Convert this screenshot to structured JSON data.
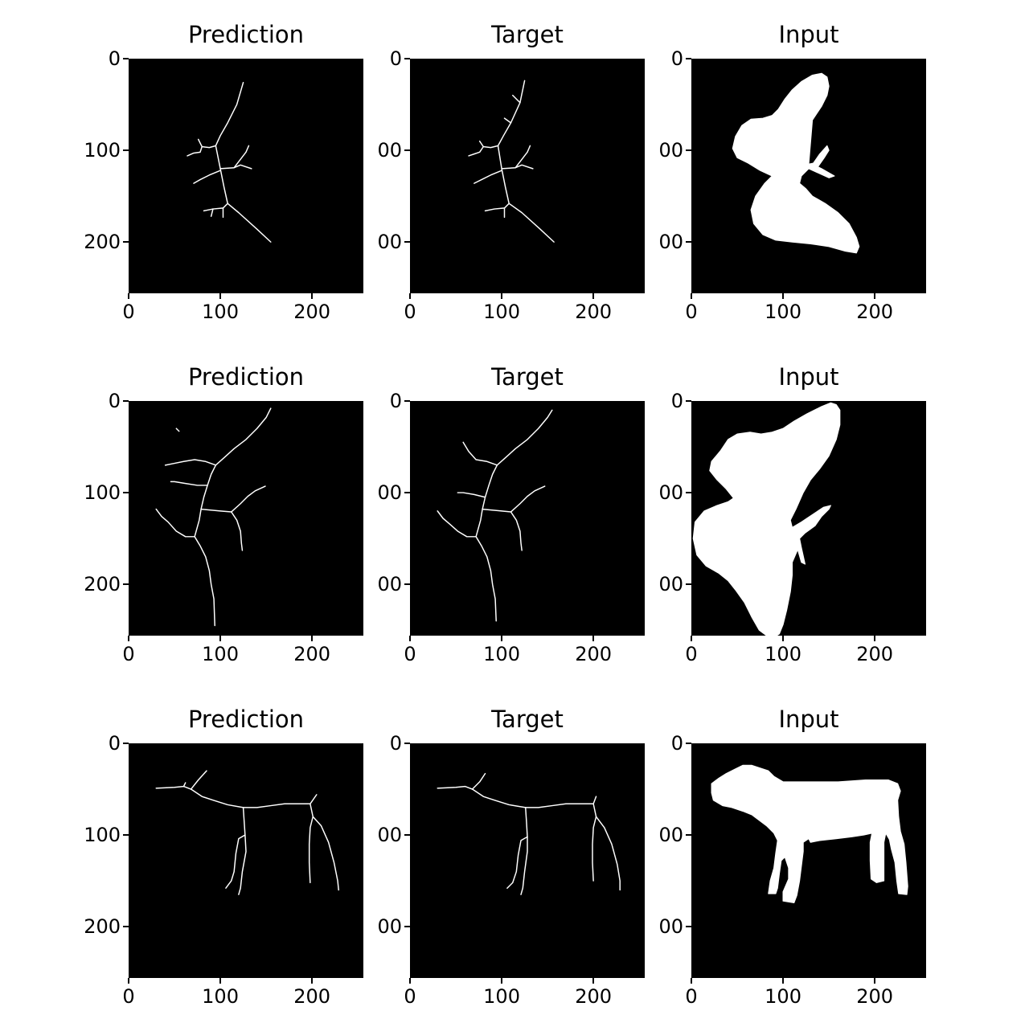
{
  "figure": {
    "rows": [
      {
        "panels": [
          {
            "title": "Prediction",
            "kind": "skeleton",
            "shape": "butterfly1-pred"
          },
          {
            "title": "Target",
            "kind": "skeleton",
            "shape": "butterfly1-target"
          },
          {
            "title": "Input",
            "kind": "silhouette",
            "shape": "butterfly1"
          }
        ]
      },
      {
        "panels": [
          {
            "title": "Prediction",
            "kind": "skeleton",
            "shape": "butterfly2-pred"
          },
          {
            "title": "Target",
            "kind": "skeleton",
            "shape": "butterfly2-target"
          },
          {
            "title": "Input",
            "kind": "silhouette",
            "shape": "butterfly2"
          }
        ]
      },
      {
        "panels": [
          {
            "title": "Prediction",
            "kind": "skeleton",
            "shape": "cow-pred"
          },
          {
            "title": "Target",
            "kind": "skeleton",
            "shape": "cow-target"
          },
          {
            "title": "Input",
            "kind": "silhouette",
            "shape": "cow"
          }
        ]
      }
    ],
    "axis": {
      "y_ticks": [
        0,
        100,
        200
      ],
      "x_ticks": [
        0,
        100,
        200
      ],
      "y_tick_labels_first_col": [
        "0",
        "100",
        "200"
      ],
      "y_tick_labels_other_cols": [
        "0",
        "00",
        "00"
      ],
      "x_tick_labels": [
        "0",
        "100",
        "200"
      ],
      "range": [
        0,
        256
      ]
    },
    "colors": {
      "background": "#000000",
      "foreground": "#ffffff",
      "page": "#ffffff"
    }
  }
}
